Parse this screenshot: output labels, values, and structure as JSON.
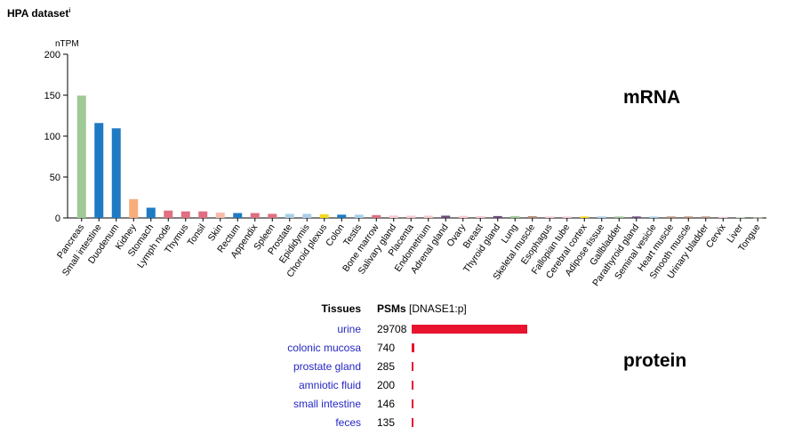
{
  "header": {
    "title": "HPA dataset",
    "info_marker": "i"
  },
  "labels": {
    "mrna": "mRNA",
    "protein": "protein"
  },
  "chart_data": {
    "type": "bar",
    "title": "",
    "ylabel": "nTPM",
    "ylim": [
      0,
      200
    ],
    "yticks": [
      0,
      50,
      100,
      150,
      200
    ],
    "categories": [
      "Pancreas",
      "Small intestine",
      "Duodenum",
      "Kidney",
      "Stomach",
      "Lymph node",
      "Thymus",
      "Tonsil",
      "Skin",
      "Rectum",
      "Appendix",
      "Spleen",
      "Prostate",
      "Epididymis",
      "Choroid plexus",
      "Colon",
      "Testis",
      "Bone marrow",
      "Salivary gland",
      "Placenta",
      "Endometrium",
      "Adrenal gland",
      "Ovary",
      "Breast",
      "Thyroid gland",
      "Lung",
      "Skeletal muscle",
      "Esophagus",
      "Fallopian tube",
      "Cerebral cortex",
      "Adipose tissue",
      "Gallbladder",
      "Parathyroid gland",
      "Seminal vesicle",
      "Heart muscle",
      "Smooth muscle",
      "Urinary bladder",
      "Cervix",
      "Liver",
      "Tongue"
    ],
    "values": [
      149.5,
      116,
      109.5,
      23,
      12.5,
      9,
      8,
      8,
      6.5,
      6,
      6,
      5,
      5,
      5,
      4.5,
      4,
      4,
      3.5,
      3,
      2.8,
      2.8,
      2.8,
      2.5,
      2.3,
      2.3,
      2.3,
      2.2,
      1.8,
      1.8,
      1.8,
      1.8,
      1.8,
      1.8,
      1.8,
      1.8,
      1.8,
      1.8,
      1.3,
      0.5,
      0.3
    ],
    "colors": [
      "#9fc996",
      "#1f7ac4",
      "#1f7ac4",
      "#f8ad7d",
      "#1f7ac4",
      "#df6f81",
      "#df6f81",
      "#df6f81",
      "#f6bcaa",
      "#1f7ac4",
      "#df6f81",
      "#df6f81",
      "#a9cfe9",
      "#a9cfe9",
      "#f2d81c",
      "#1f7ac4",
      "#a9cfe9",
      "#df6f81",
      "#f6c9cf",
      "#f6c9cf",
      "#f6c9cf",
      "#6a4a7c",
      "#f6c9cf",
      "#f6c9cf",
      "#6a4a7c",
      "#9fc996",
      "#b68c74",
      "#f6c9cf",
      "#f6c9cf",
      "#f2d81c",
      "#a9cfe9",
      "#9fc996",
      "#6a4a7c",
      "#a9cfe9",
      "#b68c74",
      "#b68c74",
      "#b68c74",
      "#f6c9cf",
      "#9fc996",
      "#9fc996"
    ]
  },
  "protein_table": {
    "header_tissues": "Tissues",
    "header_psms": "PSMs",
    "header_gene": "[DNASE1:p]",
    "bar_color": "#e8132f",
    "rows": [
      {
        "tissue": "urine",
        "psms": "29708",
        "value": 29708
      },
      {
        "tissue": "colonic mucosa",
        "psms": "740",
        "value": 740
      },
      {
        "tissue": "prostate gland",
        "psms": "285",
        "value": 285
      },
      {
        "tissue": "amniotic fluid",
        "psms": "200",
        "value": 200
      },
      {
        "tissue": "small intestine",
        "psms": "146",
        "value": 146
      },
      {
        "tissue": "feces",
        "psms": "135",
        "value": 135
      }
    ]
  }
}
